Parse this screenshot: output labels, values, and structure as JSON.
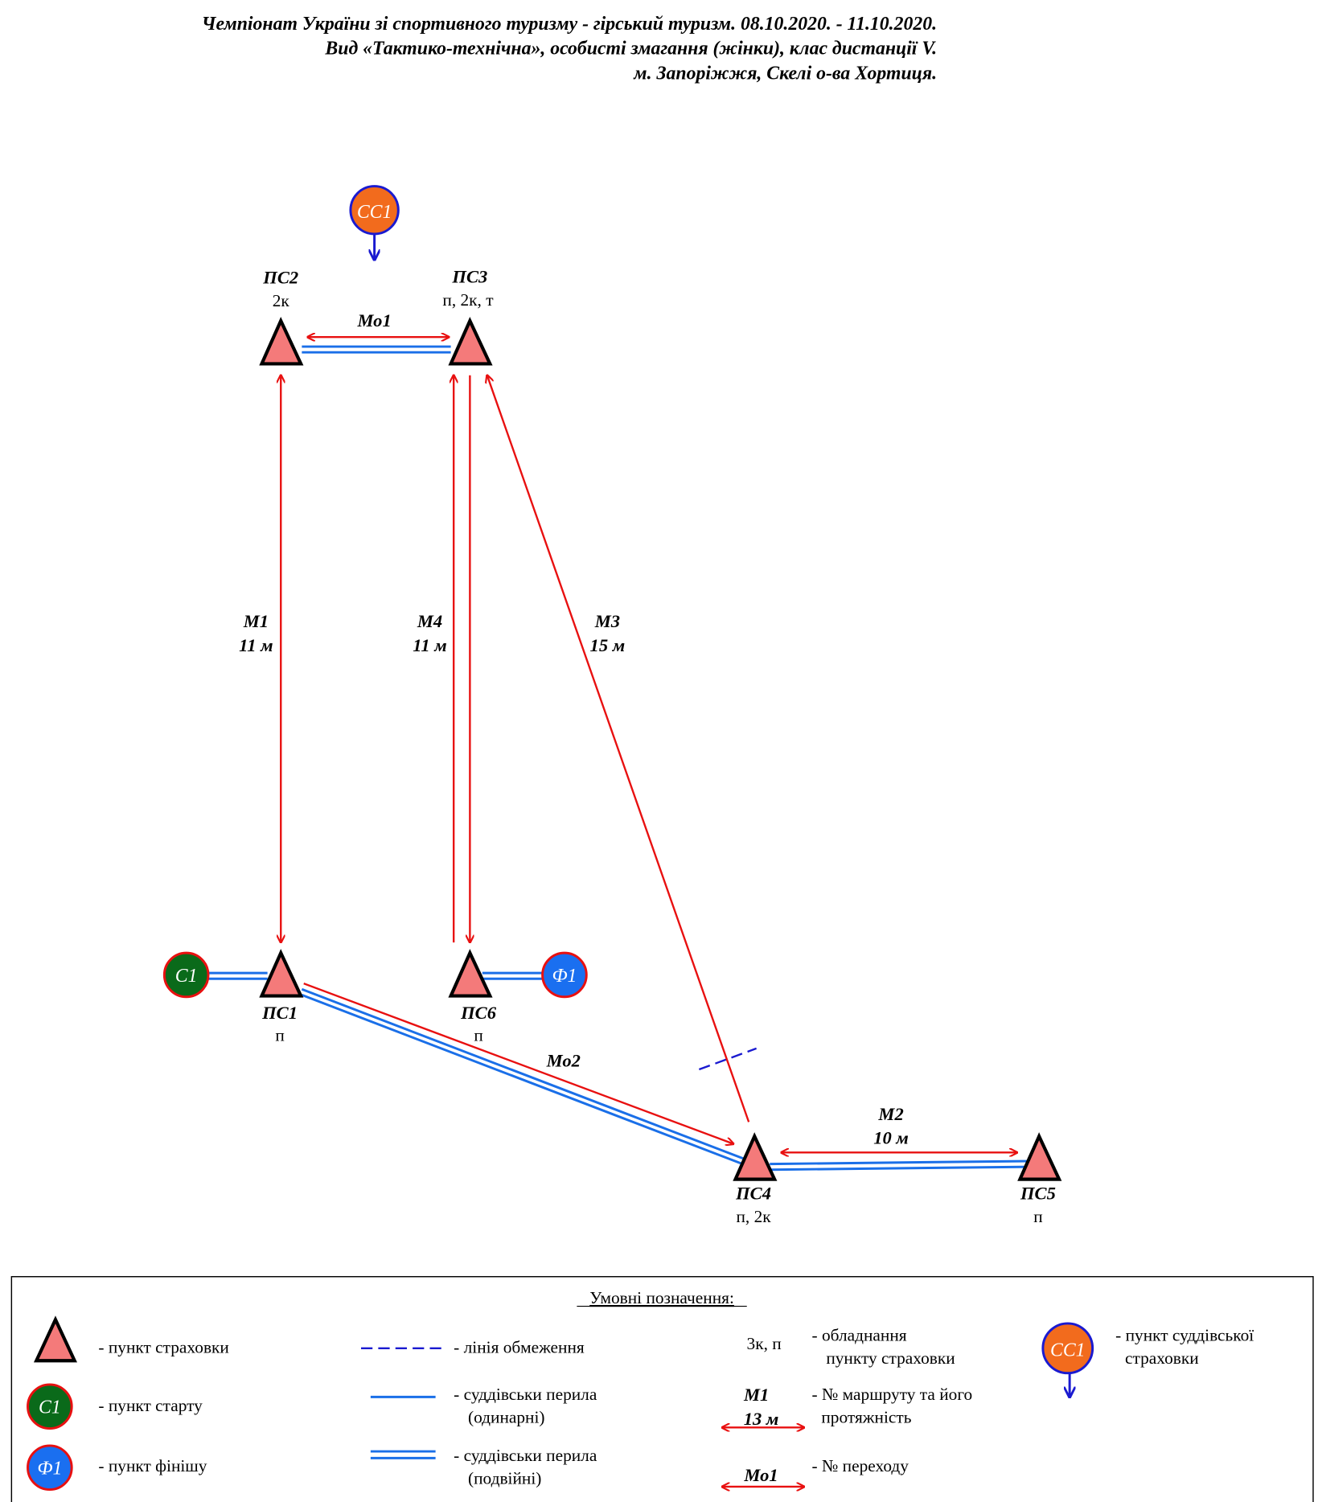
{
  "header": {
    "line1": "Чемпіонат України зі спортивного туризму - гірський туризм. 08.10.2020. - 11.10.2020.",
    "line2": "Вид «Тактико-технічна», особисті змагання (жінки), клас дистанції V.",
    "line3": "м. Запоріжжя, Скелі о-ва Хортиця."
  },
  "colors": {
    "route": "#e81010",
    "rope": "#1a6fe8",
    "point_fill": "#f47a7a",
    "start": "#0a6a1a",
    "finish": "#1a6ff0",
    "judge": "#f26b1d",
    "restriction": "#1a1ad0"
  },
  "points": {
    "ps1": {
      "name": "ПС1",
      "equip": "п"
    },
    "ps2": {
      "name": "ПС2",
      "equip": "2к"
    },
    "ps3": {
      "name": "ПС3",
      "equip": "п, 2к, т"
    },
    "ps4": {
      "name": "ПС4",
      "equip": "п, 2к"
    },
    "ps5": {
      "name": "ПС5",
      "equip": "п"
    },
    "ps6": {
      "name": "ПС6",
      "equip": "п"
    },
    "start": "С1",
    "finish": "Ф1",
    "judge": "СС1"
  },
  "routes": {
    "m1": {
      "name": "М1",
      "length": "11 м"
    },
    "m2": {
      "name": "М2",
      "length": "10 м"
    },
    "m3": {
      "name": "М3",
      "length": "15 м"
    },
    "m4": {
      "name": "М4",
      "length": "11 м"
    },
    "mo1": {
      "name": "Мо1"
    },
    "mo2": {
      "name": "Мо2"
    }
  },
  "legend": {
    "title": "Умовні позначення:",
    "point": "- пункт страховки",
    "start_sym": "С1",
    "start": "- пункт старту",
    "finish_sym": "Ф1",
    "finish": "- пункт фінішу",
    "restriction": "- лінія обмеження",
    "single_rope_1": "- суддівськи перила",
    "single_rope_2": "(одинарні)",
    "double_rope_1": "- суддівськи перила",
    "double_rope_2": "(подвійні)",
    "equip_sym": "3к, п",
    "equip_1": "- обладнання",
    "equip_2": "пункту страховки",
    "route_sym": "М1",
    "route_len": "13 м",
    "route_1": "- № маршруту та його",
    "route_2": "протяжність",
    "transition_sym": "Мо1",
    "transition": "- № переходу",
    "judge_sym": "СС1",
    "judge_1": "- пункт суддівської",
    "judge_2": "страховки"
  }
}
